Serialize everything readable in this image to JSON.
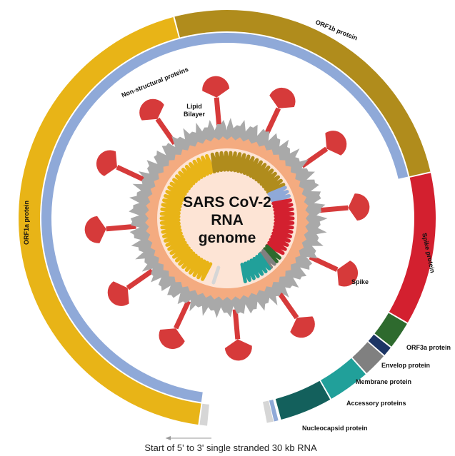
{
  "center": {
    "line1": "SARS CoV-2",
    "line2": "RNA",
    "line3": "genome"
  },
  "labels": {
    "orf1b": "ORF1b protein",
    "non_structural": "Non-structural proteins",
    "lipid1": "Lipid",
    "lipid2": "Bilayer",
    "orf1a": "ORF1a protein",
    "spike_protein": "Spike protein",
    "spike": "Spike",
    "orf3a": "ORF3a protein",
    "envelop": "Envelop protein",
    "membrane": "Membrane protein",
    "accessory": "Accessory proteins",
    "nucleocapsid": "Nucleocapsid protein"
  },
  "footer": "Start of 5' to 3' single stranded 30 kb RNA"
}
